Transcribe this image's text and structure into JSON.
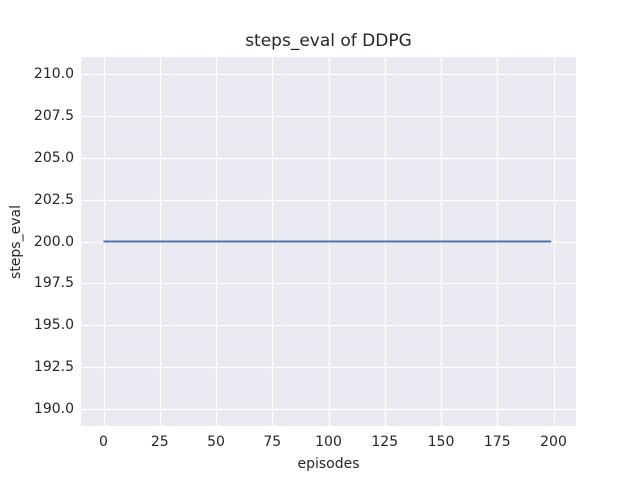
{
  "figure": {
    "background": "#ffffff",
    "colors": {
      "plot_background": "#eaeaf2",
      "grid": "#ffffff",
      "text": "#262626",
      "line": "#4c72b0"
    }
  },
  "chart_data": {
    "type": "line",
    "title": "steps_eval of DDPG",
    "xlabel": "episodes",
    "ylabel": "steps_eval",
    "xlim": [
      -10,
      210
    ],
    "ylim": [
      189,
      211
    ],
    "grid": true,
    "legend": false,
    "x_ticks": [
      {
        "value": 0,
        "label": "0"
      },
      {
        "value": 25,
        "label": "25"
      },
      {
        "value": 50,
        "label": "50"
      },
      {
        "value": 75,
        "label": "75"
      },
      {
        "value": 100,
        "label": "100"
      },
      {
        "value": 125,
        "label": "125"
      },
      {
        "value": 150,
        "label": "150"
      },
      {
        "value": 175,
        "label": "175"
      },
      {
        "value": 200,
        "label": "200"
      }
    ],
    "y_ticks": [
      {
        "value": 190.0,
        "label": "190.0"
      },
      {
        "value": 192.5,
        "label": "192.5"
      },
      {
        "value": 195.0,
        "label": "195.0"
      },
      {
        "value": 197.5,
        "label": "197.5"
      },
      {
        "value": 200.0,
        "label": "200.0"
      },
      {
        "value": 202.5,
        "label": "202.5"
      },
      {
        "value": 205.0,
        "label": "205.0"
      },
      {
        "value": 207.5,
        "label": "207.5"
      },
      {
        "value": 210.0,
        "label": "210.0"
      }
    ],
    "series": [
      {
        "name": "DDPG",
        "color": "#4c72b0",
        "x": [
          0,
          199
        ],
        "y": [
          200.0,
          200.0
        ]
      }
    ]
  }
}
